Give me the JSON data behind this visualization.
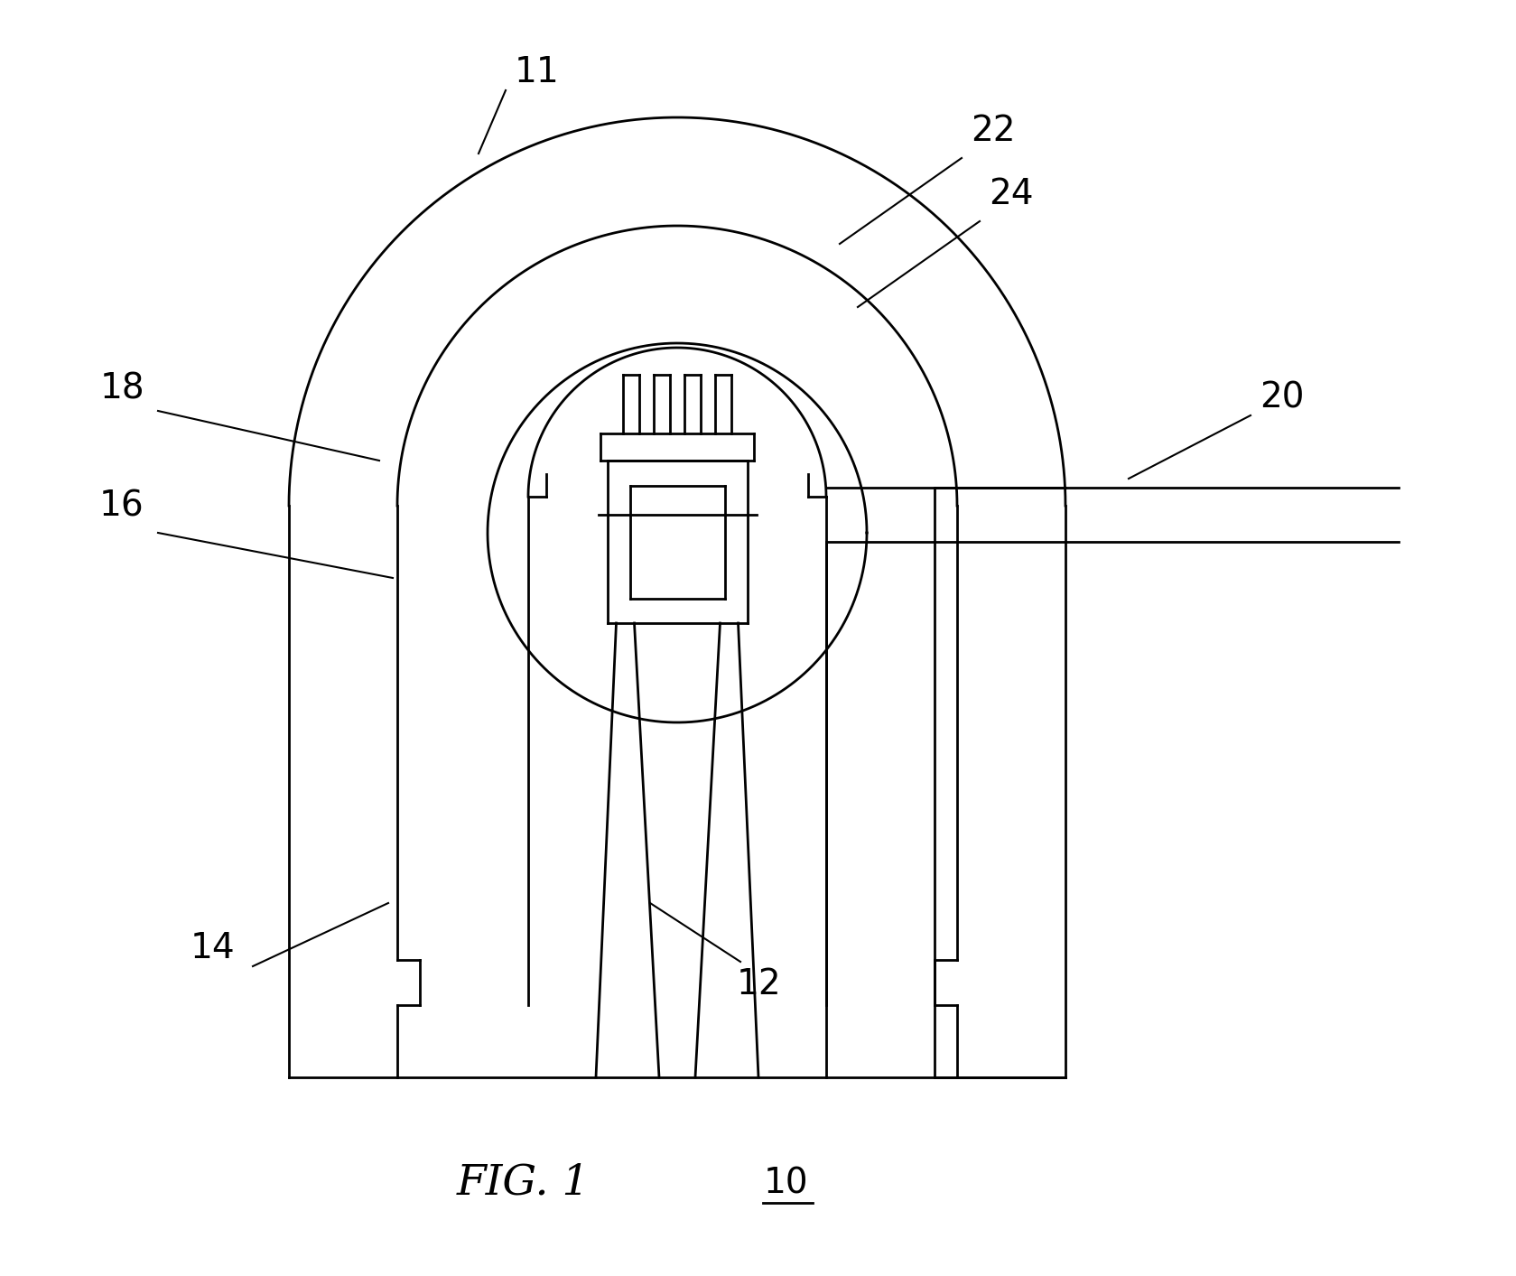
{
  "background_color": "#ffffff",
  "line_color": "#000000",
  "lw": 2.0,
  "fig_width": 16.79,
  "fig_height": 14.13,
  "dpi": 100
}
